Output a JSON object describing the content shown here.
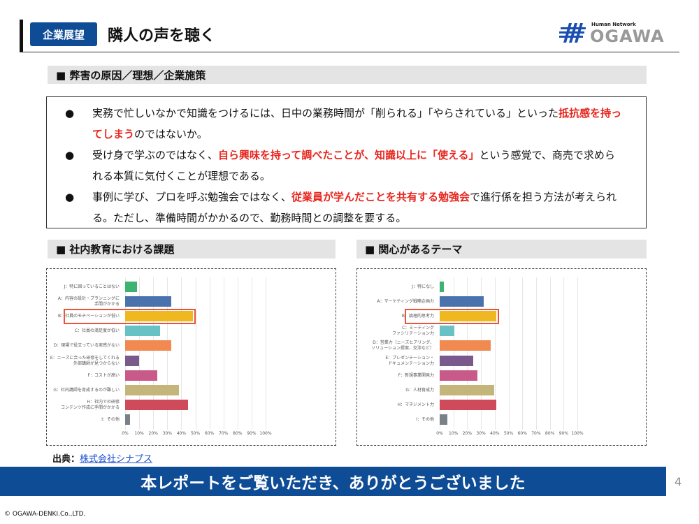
{
  "header": {
    "badge": "企業展望",
    "title": "隣人の声を聴く",
    "logo_text": "OGAWA",
    "logo_tagline": "Human Network"
  },
  "section1": {
    "title": "■ 弊害の原因／理想／企業施策",
    "bullets": [
      {
        "parts": [
          {
            "t": "実務で忙しいなかで知識をつけるには、日中の業務時間が「削られる」「やらされている」といった"
          },
          {
            "t": "抵抗感を持ってしまう",
            "red": true
          },
          {
            "t": "のではないか。"
          }
        ]
      },
      {
        "parts": [
          {
            "t": "受け身で学ぶのではなく、"
          },
          {
            "t": "自ら興味を持って調べたことが、知識以上に「使える」",
            "red": true
          },
          {
            "t": "という感覚で、商売で求められる本質に気付くことが理想である。"
          }
        ]
      },
      {
        "parts": [
          {
            "t": "事例に学び、プロを呼ぶ勉強会ではなく、"
          },
          {
            "t": "従業員が学んだことを共有する勉強会",
            "red": true
          },
          {
            "t": "で進行係を担う方法が考えられる。ただし、準備時間がかかるので、勤務時間との調整を要する。"
          }
        ]
      }
    ],
    "bullet_char": "●"
  },
  "section2": {
    "title": "■ 社内教育における課題"
  },
  "section3": {
    "title": "■ 関心があるテーマ"
  },
  "chart_data": [
    {
      "type": "bar",
      "orientation": "horizontal",
      "title": "社内教育における課題",
      "xlim": [
        0,
        100
      ],
      "unit": "%",
      "x_ticks": [
        "0%",
        "10%",
        "20%",
        "30%",
        "40%",
        "50%",
        "60%",
        "70%",
        "80%",
        "90%",
        "100%"
      ],
      "categories": [
        "J：特に困っていることはない",
        "A：内容の設計・プランニングに\n手間がかかる",
        "B：社員のモチベーションが低い",
        "C：社員の満足度が低い",
        "D：現場で役立っている実感がない",
        "E：ニーズに合った研修をしてくれる\n外部講師が見つからない",
        "F：コストが高い",
        "G：社内講師を育成するのが難しい",
        "H：社内での研修\nコンテンツ作成に手間がかかる",
        "I：その他"
      ],
      "values": [
        8.5,
        33,
        48.5,
        25,
        33,
        10,
        23,
        38.5,
        45,
        3.5
      ],
      "colors": [
        "#3cb371",
        "#4a72ad",
        "#f0b820",
        "#68c1c4",
        "#f08a50",
        "#7a5a8c",
        "#c85a8a",
        "#c4b57a",
        "#cf4a5a",
        "#7a8088"
      ],
      "highlight": 2
    },
    {
      "type": "bar",
      "orientation": "horizontal",
      "title": "関心があるテーマ",
      "xlim": [
        0,
        100
      ],
      "unit": "%",
      "x_ticks": [
        "0%",
        "10%",
        "20%",
        "30%",
        "40%",
        "50%",
        "60%",
        "70%",
        "80%",
        "90%",
        "100%"
      ],
      "categories": [
        "J：特になし",
        "A：マーケティング戦略企画力",
        "B：論理的思考力",
        "C：ミーティング\nファシリテーション力",
        "D：営業力（ニーズヒアリング、\nソリューション提案、交渉など）",
        "E：プレゼンテーション・\nドキュメンテーション力",
        "F：新規事業開発力",
        "G：人材育成力",
        "H：マネジメント力",
        "I：その他"
      ],
      "values": [
        3,
        32,
        41,
        10.5,
        37,
        24.5,
        27.5,
        39.5,
        41,
        5.5
      ],
      "colors": [
        "#3cb371",
        "#4a72ad",
        "#f0b820",
        "#68c1c4",
        "#f08a50",
        "#7a5a8c",
        "#c85a8a",
        "#c4b57a",
        "#cf4a5a",
        "#7a8088"
      ],
      "highlight": 2
    }
  ],
  "source": {
    "label": "出典：",
    "link": "株式会社シナプス"
  },
  "banner": "本レポートをご覧いただき、ありがとうございました",
  "page_number": "4",
  "copyright": "© OGAWA-DENKI.Co.,LTD."
}
